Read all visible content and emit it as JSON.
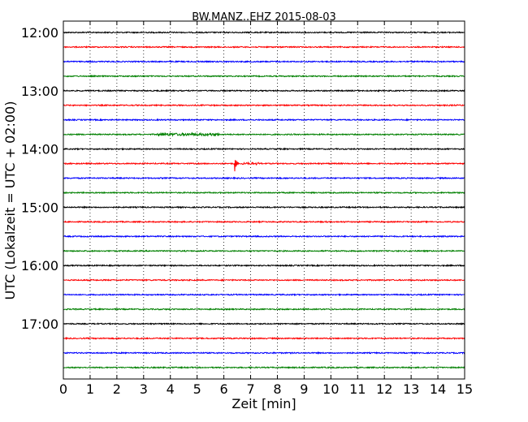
{
  "chart_data": {
    "type": "line",
    "title": "BW.MANZ..EHZ 2015-08-03",
    "xlabel": "Zeit  [min]",
    "ylabel": "UTC (Lokalzeit = UTC + 02:00)",
    "xlim": [
      0,
      15
    ],
    "x_ticks": [
      "0",
      "1",
      "2",
      "3",
      "4",
      "5",
      "6",
      "7",
      "8",
      "9",
      "10",
      "11",
      "12",
      "13",
      "14",
      "15"
    ],
    "y_ticks": [
      "12:00",
      "13:00",
      "14:00",
      "15:00",
      "16:00",
      "17:00"
    ],
    "grid": true,
    "trace_interval_min": 15,
    "start_time": "12:00",
    "trace_colors": [
      "#000000",
      "#ff0000",
      "#0000ff",
      "#008000"
    ],
    "traces": [
      {
        "start": "12:00",
        "color": "#000000"
      },
      {
        "start": "12:15",
        "color": "#ff0000"
      },
      {
        "start": "12:30",
        "color": "#0000ff"
      },
      {
        "start": "12:45",
        "color": "#008000"
      },
      {
        "start": "13:00",
        "color": "#000000"
      },
      {
        "start": "13:15",
        "color": "#ff0000"
      },
      {
        "start": "13:30",
        "color": "#0000ff"
      },
      {
        "start": "13:45",
        "color": "#008000"
      },
      {
        "start": "14:00",
        "color": "#000000"
      },
      {
        "start": "14:15",
        "color": "#ff0000",
        "event_at_min": 6.4
      },
      {
        "start": "14:30",
        "color": "#0000ff"
      },
      {
        "start": "14:45",
        "color": "#008000"
      },
      {
        "start": "15:00",
        "color": "#000000"
      },
      {
        "start": "15:15",
        "color": "#ff0000"
      },
      {
        "start": "15:30",
        "color": "#0000ff"
      },
      {
        "start": "15:45",
        "color": "#008000"
      },
      {
        "start": "16:00",
        "color": "#000000"
      },
      {
        "start": "16:15",
        "color": "#ff0000"
      },
      {
        "start": "16:30",
        "color": "#0000ff"
      },
      {
        "start": "16:45",
        "color": "#008000"
      },
      {
        "start": "17:00",
        "color": "#000000"
      },
      {
        "start": "17:15",
        "color": "#ff0000"
      },
      {
        "start": "17:30",
        "color": "#0000ff"
      },
      {
        "start": "17:45",
        "color": "#008000"
      }
    ]
  }
}
